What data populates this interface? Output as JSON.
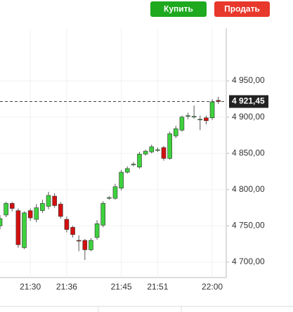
{
  "buttons": [
    {
      "label": "Купить",
      "color": "#1ea91e"
    },
    {
      "label": "Продать",
      "color": "#e8372b"
    }
  ],
  "chart_data": {
    "type": "candlestick",
    "categories": [
      null,
      null,
      null,
      null,
      null,
      "21:30",
      null,
      null,
      null,
      null,
      null,
      "21:36",
      null,
      null,
      null,
      null,
      null,
      null,
      null,
      null,
      "21:45",
      null,
      null,
      null,
      null,
      null,
      "21:51",
      null,
      null,
      null,
      null,
      null,
      null,
      null,
      null,
      "22:00",
      null
    ],
    "open": [
      4750,
      4765,
      4781,
      4771,
      4720,
      4771,
      4759,
      4771,
      4777,
      4791,
      4780,
      4759,
      4748,
      4730,
      4730,
      4717,
      4734,
      4751,
      4788,
      4788,
      4802,
      4824,
      4834,
      4831,
      4849,
      4852,
      4855,
      4858,
      4843,
      4874,
      4882,
      4901,
      4900,
      4897,
      4899,
      4899,
      4923
    ],
    "high": [
      4765,
      4783,
      4783,
      4774,
      4770,
      4774,
      4780,
      4786,
      4797,
      4795,
      4783,
      4763,
      4750,
      4737,
      4732,
      4733,
      4758,
      4784,
      4791,
      4808,
      4827,
      4832,
      4838,
      4852,
      4855,
      4862,
      4858,
      4860,
      4880,
      4888,
      4902,
      4906,
      4916,
      4902,
      4902,
      4925,
      4928
    ],
    "low": [
      4745,
      4762,
      4770,
      4720,
      4718,
      4757,
      4755,
      4768,
      4773,
      4775,
      4760,
      4741,
      4734,
      4715,
      4703,
      4715,
      4731,
      4748,
      4786,
      4786,
      4799,
      4822,
      4832,
      4829,
      4847,
      4850,
      4852,
      4840,
      4841,
      4871,
      4880,
      4897,
      4898,
      4882,
      4890,
      4896,
      4918
    ],
    "close": [
      4760,
      4781,
      4774,
      4724,
      4768,
      4761,
      4775,
      4781,
      4792,
      4778,
      4763,
      4745,
      4738,
      4729,
      4717,
      4730,
      4753,
      4781,
      4789,
      4804,
      4824,
      4829,
      4835,
      4849,
      4853,
      4859,
      4855,
      4843,
      4877,
      4884,
      4900,
      4902,
      4901,
      4897,
      4895,
      4921,
      4921.45
    ],
    "up_color": "#3dd13d",
    "down_color": "#d40f0f",
    "ylim": [
      4678.7,
      5022.7
    ],
    "yticks": [
      {
        "value": 4700,
        "label": "4 700,00"
      },
      {
        "value": 4750,
        "label": "4 750,00"
      },
      {
        "value": 4800,
        "label": "4 800,00"
      },
      {
        "value": 4850,
        "label": "4 850,00"
      },
      {
        "value": 4900,
        "label": "4 900,00"
      },
      {
        "value": 4950,
        "label": "4 950,00"
      }
    ],
    "last_price": {
      "value": 4921.45,
      "label": "4 921,45"
    },
    "grid": true
  }
}
